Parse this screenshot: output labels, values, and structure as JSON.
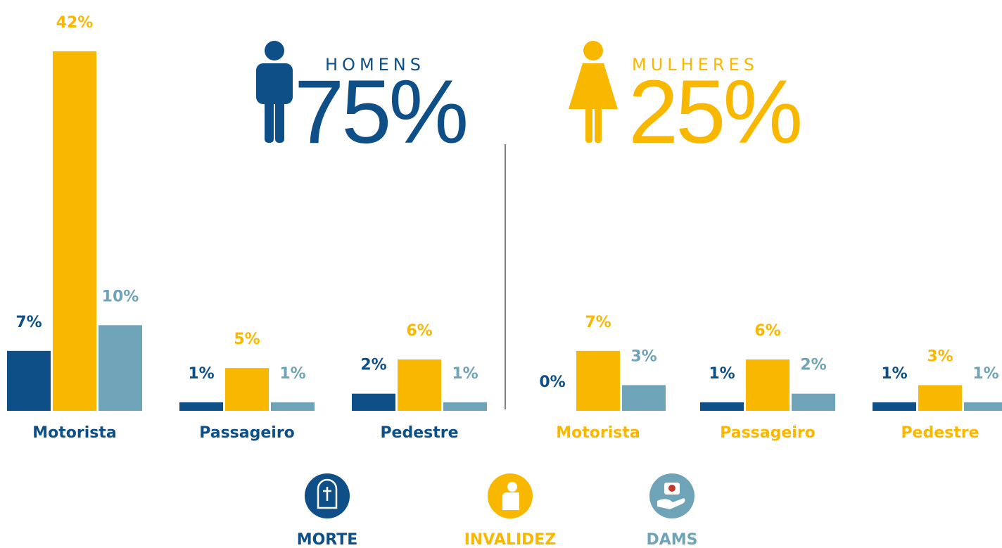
{
  "chart_data": [
    {
      "type": "bar",
      "title": "HOMENS",
      "subtitle": "75%",
      "label_color": "#0d4f86",
      "categories": [
        "Motorista",
        "Passageiro",
        "Pedestre"
      ],
      "series": [
        {
          "name": "MORTE",
          "color": "#0d4f86",
          "values": [
            7,
            1,
            2
          ],
          "value_labels": [
            "7%",
            "1%",
            "2%"
          ]
        },
        {
          "name": "INVALIDEZ",
          "color": "#f9b800",
          "values": [
            42,
            5,
            6
          ],
          "value_labels": [
            "42%",
            "5%",
            "6%"
          ]
        },
        {
          "name": "DAMS",
          "color": "#6fa3b8",
          "values": [
            10,
            1,
            1
          ],
          "value_labels": [
            "10%",
            "1%",
            "1%"
          ]
        }
      ]
    },
    {
      "type": "bar",
      "title": "MULHERES",
      "subtitle": "25%",
      "label_color": "#f9b800",
      "categories": [
        "Motorista",
        "Passageiro",
        "Pedestre"
      ],
      "series": [
        {
          "name": "MORTE",
          "color": "#0d4f86",
          "values": [
            0,
            1,
            1
          ],
          "value_labels": [
            "0%",
            "1%",
            "1%"
          ]
        },
        {
          "name": "INVALIDEZ",
          "color": "#f9b800",
          "values": [
            7,
            6,
            3
          ],
          "value_labels": [
            "7%",
            "6%",
            "3%"
          ]
        },
        {
          "name": "DAMS",
          "color": "#6fa3b8",
          "values": [
            3,
            2,
            1
          ],
          "value_labels": [
            "3%",
            "2%",
            "1%"
          ]
        }
      ]
    }
  ]
}
